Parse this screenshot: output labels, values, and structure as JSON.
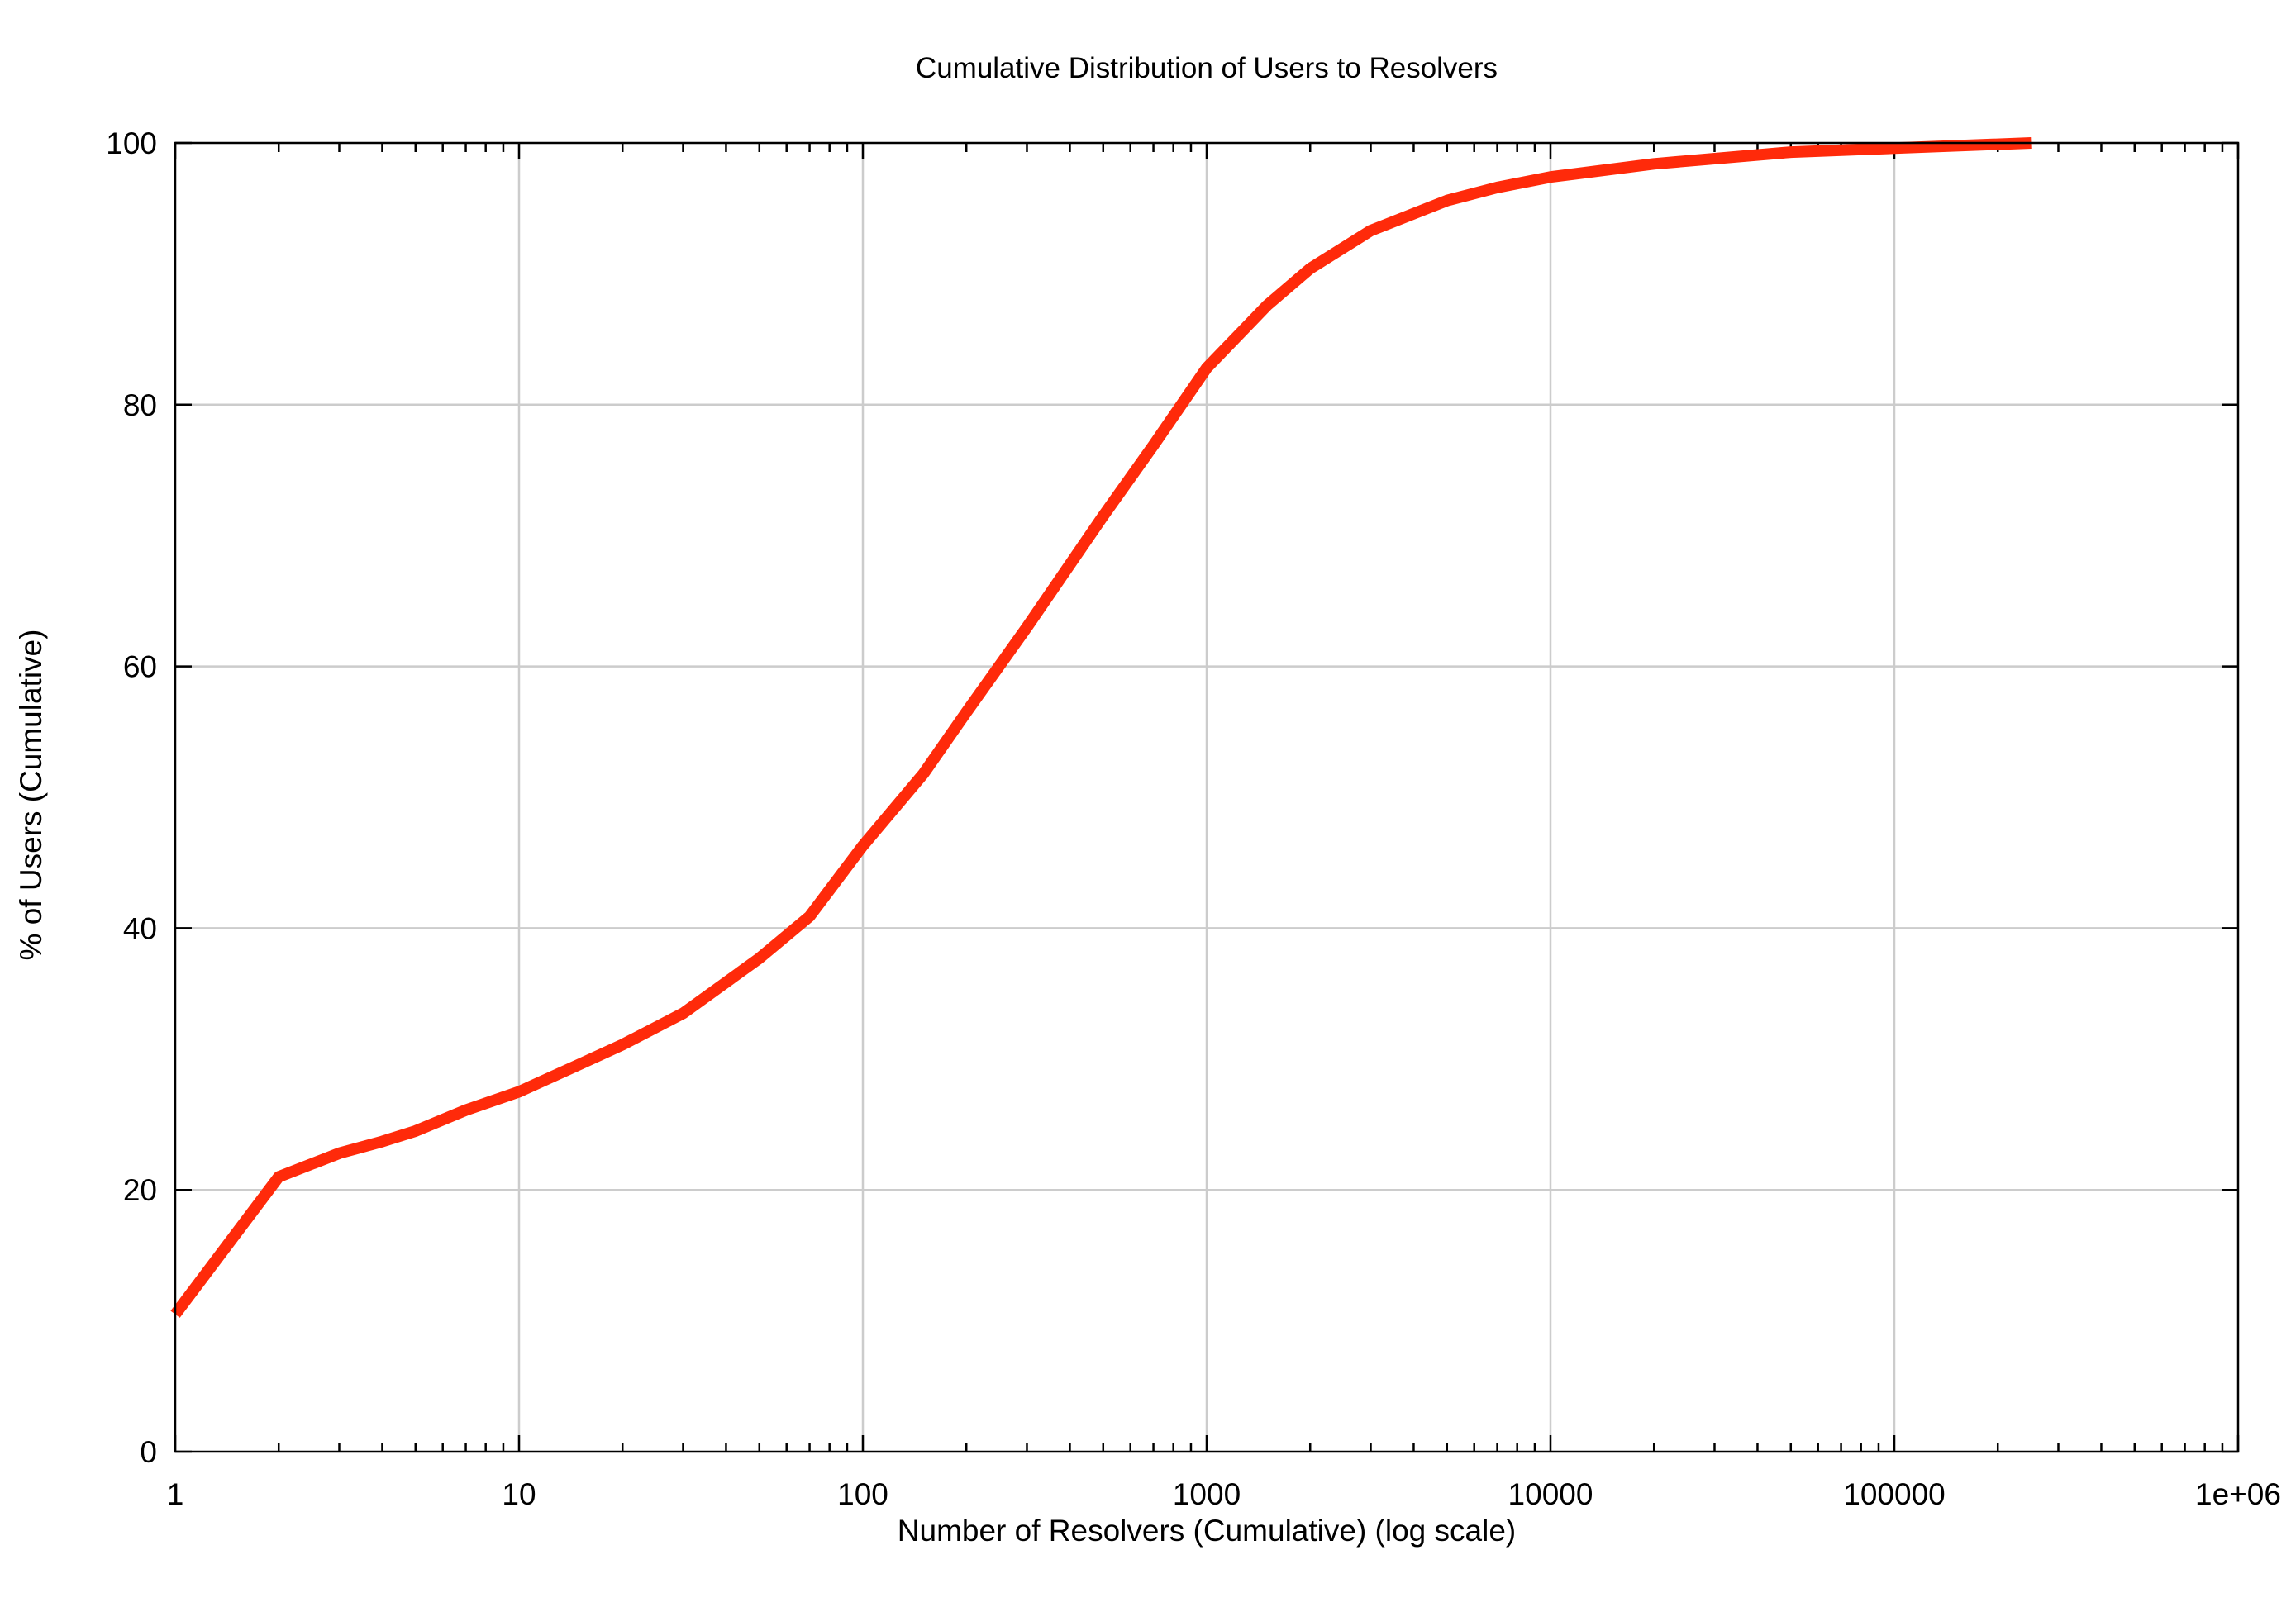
{
  "chart_data": {
    "type": "line",
    "title": "Cumulative Distribution of Users to Resolvers",
    "xlabel": "Number of Resolvers (Cumulative) (log scale)",
    "ylabel": "% of Users (Cumulative)",
    "xscale": "log",
    "xlim": [
      1,
      1000000
    ],
    "ylim": [
      0,
      100
    ],
    "grid": true,
    "legend": "none",
    "x_ticks": [
      {
        "value": 1,
        "label": "1"
      },
      {
        "value": 10,
        "label": "10"
      },
      {
        "value": 100,
        "label": "100"
      },
      {
        "value": 1000,
        "label": "1000"
      },
      {
        "value": 10000,
        "label": "10000"
      },
      {
        "value": 100000,
        "label": "100000"
      },
      {
        "value": 1000000,
        "label": "1e+06"
      }
    ],
    "y_ticks": [
      {
        "value": 0,
        "label": "0"
      },
      {
        "value": 20,
        "label": "20"
      },
      {
        "value": 40,
        "label": "40"
      },
      {
        "value": 60,
        "label": "60"
      },
      {
        "value": 80,
        "label": "80"
      },
      {
        "value": 100,
        "label": "100"
      }
    ],
    "series": [
      {
        "color": "#ff2a0a",
        "x": [
          1,
          2,
          3,
          4,
          5,
          7,
          10,
          15,
          20,
          30,
          50,
          70,
          100,
          150,
          200,
          300,
          500,
          700,
          1000,
          1500,
          2000,
          3000,
          5000,
          7000,
          10000,
          20000,
          50000,
          100000,
          250000
        ],
        "y": [
          10.5,
          21,
          22.8,
          23.7,
          24.5,
          26.1,
          27.5,
          29.6,
          31.1,
          33.5,
          37.7,
          40.9,
          46.3,
          51.8,
          56.5,
          63.0,
          71.5,
          76.9,
          82.8,
          87.6,
          90.4,
          93.3,
          95.6,
          96.6,
          97.4,
          98.4,
          99.3,
          99.6,
          100
        ]
      }
    ]
  }
}
